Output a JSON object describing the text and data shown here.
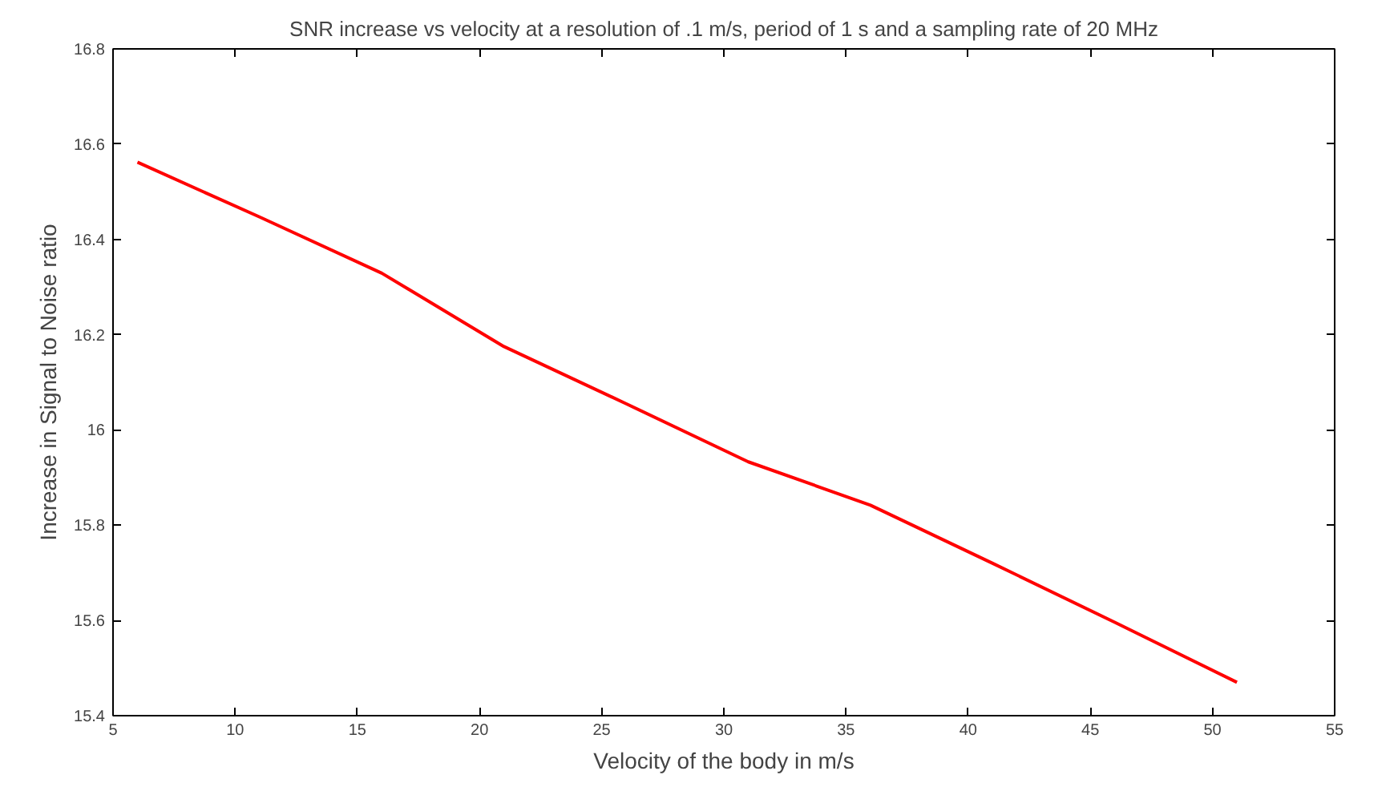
{
  "chart_data": {
    "type": "line",
    "title": "SNR increase vs velocity at a resolution of .1 m/s, period of 1 s and a sampling rate of 20 MHz",
    "xlabel": "Velocity of the body in m/s",
    "ylabel": "Increase in Signal to Noise ratio",
    "x": [
      6,
      11,
      16,
      21,
      26,
      31,
      36,
      41,
      46,
      51
    ],
    "series": [
      {
        "color": "#ff0000",
        "values": [
          16.562,
          16.447,
          16.329,
          16.175,
          16.055,
          15.933,
          15.842,
          15.72,
          15.596,
          15.47
        ]
      }
    ],
    "xlim": [
      5,
      55
    ],
    "xticks": [
      5,
      10,
      15,
      20,
      25,
      30,
      35,
      40,
      45,
      50,
      55
    ],
    "ylim": [
      15.4,
      16.8
    ],
    "yticks": [
      15.4,
      15.6,
      15.8,
      16,
      16.2,
      16.4,
      16.6,
      16.8
    ],
    "grid": false,
    "marker": "none",
    "line_style": "solid"
  }
}
